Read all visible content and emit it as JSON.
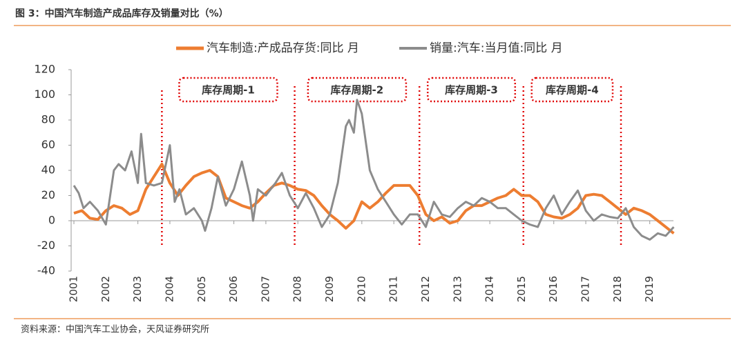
{
  "chart_data": {
    "type": "line",
    "title": "图 3：中国汽车制造产成品库存及销量对比（%）",
    "source": "资料来源：中国汽车工业协会，天风证券研究所",
    "xlim": [
      2001,
      2020
    ],
    "xticks": [
      2001,
      2002,
      2003,
      2004,
      2005,
      2006,
      2007,
      2008,
      2009,
      2010,
      2011,
      2012,
      2013,
      2014,
      2015,
      2016,
      2017,
      2018,
      2019
    ],
    "ylim": [
      -40,
      120
    ],
    "yticks": [
      -40,
      -20,
      0,
      20,
      40,
      60,
      80,
      100,
      120
    ],
    "vlines": [
      2003.75,
      2007.9,
      2011.8,
      2015.05,
      2018.1
    ],
    "vline_color": "#e00000",
    "annotations": [
      "库存周期-1",
      "库存周期-2",
      "库存周期-3",
      "库存周期-4"
    ],
    "series": [
      {
        "name": "汽车制造:产成品存货:同比 月",
        "color": "#ed7d31",
        "width": 4,
        "x": [
          2001.0,
          2001.25,
          2001.5,
          2001.75,
          2002.0,
          2002.25,
          2002.5,
          2002.75,
          2003.0,
          2003.25,
          2003.5,
          2003.75,
          2004.0,
          2004.25,
          2004.5,
          2004.75,
          2005.0,
          2005.25,
          2005.5,
          2005.75,
          2006.0,
          2006.25,
          2006.5,
          2006.75,
          2007.0,
          2007.25,
          2007.5,
          2007.75,
          2008.0,
          2008.25,
          2008.5,
          2008.75,
          2009.0,
          2009.25,
          2009.5,
          2009.75,
          2010.0,
          2010.25,
          2010.5,
          2010.75,
          2011.0,
          2011.25,
          2011.5,
          2011.75,
          2012.0,
          2012.25,
          2012.5,
          2012.75,
          2013.0,
          2013.25,
          2013.5,
          2013.75,
          2014.0,
          2014.25,
          2014.5,
          2014.75,
          2015.0,
          2015.25,
          2015.5,
          2015.75,
          2016.0,
          2016.25,
          2016.5,
          2016.75,
          2017.0,
          2017.25,
          2017.5,
          2017.75,
          2018.0,
          2018.25,
          2018.5,
          2018.75,
          2019.0,
          2019.25,
          2019.5,
          2019.75
        ],
        "values": [
          6,
          8,
          2,
          1,
          8,
          12,
          10,
          5,
          8,
          25,
          35,
          45,
          30,
          20,
          28,
          35,
          38,
          40,
          35,
          18,
          15,
          12,
          10,
          15,
          22,
          28,
          30,
          28,
          25,
          24,
          20,
          12,
          5,
          0,
          -6,
          0,
          15,
          10,
          15,
          22,
          28,
          28,
          28,
          20,
          5,
          0,
          3,
          -2,
          0,
          8,
          12,
          12,
          15,
          18,
          20,
          25,
          20,
          20,
          15,
          5,
          3,
          2,
          5,
          10,
          20,
          21,
          20,
          15,
          10,
          5,
          10,
          8,
          5,
          0,
          -5,
          -10
        ]
      },
      {
        "name": "销量:汽车:当月值:同比 月",
        "color": "#8c8c8c",
        "width": 3,
        "x": [
          2001.0,
          2001.15,
          2001.3,
          2001.5,
          2001.75,
          2002.0,
          2002.25,
          2002.4,
          2002.6,
          2002.8,
          2003.0,
          2003.1,
          2003.25,
          2003.5,
          2003.75,
          2004.0,
          2004.15,
          2004.3,
          2004.5,
          2004.75,
          2005.0,
          2005.1,
          2005.3,
          2005.5,
          2005.75,
          2006.0,
          2006.25,
          2006.5,
          2006.6,
          2006.75,
          2007.0,
          2007.3,
          2007.5,
          2007.75,
          2008.0,
          2008.25,
          2008.5,
          2008.75,
          2009.0,
          2009.25,
          2009.5,
          2009.6,
          2009.75,
          2009.85,
          2010.0,
          2010.25,
          2010.5,
          2010.75,
          2011.0,
          2011.25,
          2011.5,
          2011.75,
          2012.0,
          2012.25,
          2012.5,
          2012.75,
          2013.0,
          2013.25,
          2013.5,
          2013.75,
          2014.0,
          2014.25,
          2014.5,
          2014.75,
          2015.0,
          2015.25,
          2015.5,
          2015.75,
          2016.0,
          2016.25,
          2016.5,
          2016.75,
          2017.0,
          2017.25,
          2017.5,
          2017.75,
          2018.0,
          2018.25,
          2018.5,
          2018.75,
          2019.0,
          2019.25,
          2019.5,
          2019.75
        ],
        "values": [
          28,
          22,
          10,
          15,
          8,
          -3,
          40,
          45,
          40,
          55,
          30,
          69,
          30,
          28,
          30,
          60,
          15,
          25,
          5,
          10,
          0,
          -8,
          10,
          35,
          12,
          25,
          47,
          20,
          0,
          25,
          20,
          30,
          38,
          20,
          10,
          22,
          10,
          -5,
          5,
          30,
          75,
          80,
          70,
          96,
          85,
          40,
          25,
          15,
          5,
          -3,
          5,
          5,
          -5,
          15,
          5,
          3,
          10,
          15,
          12,
          18,
          15,
          10,
          10,
          5,
          0,
          -3,
          -5,
          10,
          20,
          5,
          15,
          24,
          8,
          0,
          5,
          3,
          2,
          10,
          -5,
          -12,
          -15,
          -10,
          -12,
          -5
        ]
      }
    ]
  }
}
